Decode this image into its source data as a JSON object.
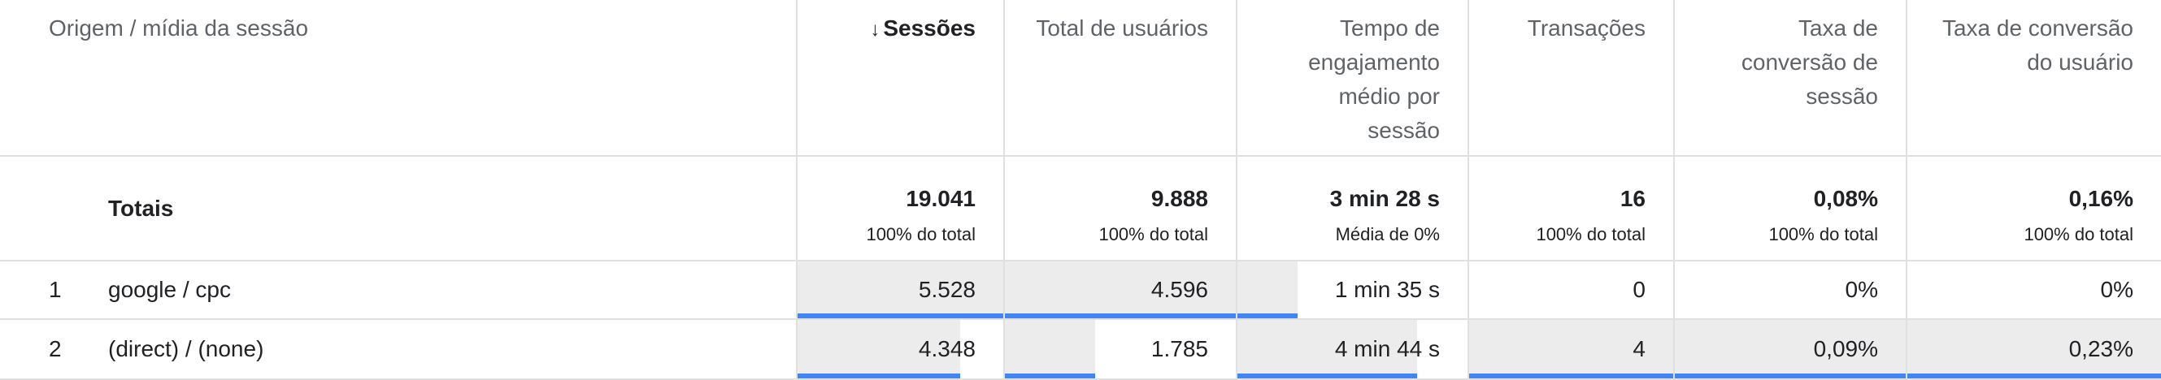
{
  "header": {
    "dimension": "Origem / mídia da sessão",
    "columns": [
      {
        "label": "Sessões",
        "sorted": true,
        "lines": [
          "Sessões"
        ]
      },
      {
        "label": "Total de usuários",
        "lines": [
          "Total de usuários"
        ]
      },
      {
        "label": "Tempo de engajamento médio por sessão",
        "lines": [
          "Tempo de",
          "engajamento",
          "médio por",
          "sessão"
        ]
      },
      {
        "label": "Transações",
        "lines": [
          "Transações"
        ]
      },
      {
        "label": "Taxa de conversão de sessão",
        "lines": [
          "Taxa de",
          "conversão de",
          "sessão"
        ]
      },
      {
        "label": "Taxa de conversão do usuário",
        "lines": [
          "Taxa de conversão",
          "do usuário"
        ]
      }
    ],
    "sort_icon": "arrow-down-icon"
  },
  "totals": {
    "label": "Totais",
    "values": [
      {
        "value": "19.041",
        "sub": "100% do total"
      },
      {
        "value": "9.888",
        "sub": "100% do total"
      },
      {
        "value": "3 min 28 s",
        "sub": "Média de 0%"
      },
      {
        "value": "16",
        "sub": "100% do total"
      },
      {
        "value": "0,08%",
        "sub": "100% do total"
      },
      {
        "value": "0,16%",
        "sub": "100% do total"
      }
    ]
  },
  "rows": [
    {
      "index": "1",
      "dimension": "google / cpc",
      "values": [
        "5.528",
        "4.596",
        "1 min 35 s",
        "0",
        "0%",
        "0%"
      ],
      "shares": [
        1.0,
        1.0,
        0.26,
        0,
        0,
        0
      ]
    },
    {
      "index": "2",
      "dimension": "(direct) / (none)",
      "values": [
        "4.348",
        "1.785",
        "4 min 44 s",
        "4",
        "0,09%",
        "0,23%"
      ],
      "shares": [
        0.79,
        0.39,
        0.78,
        1.0,
        1.0,
        1.0
      ]
    }
  ],
  "colors": {
    "bar": "#ececec",
    "line": "#4285f4",
    "border": "#e0e0e0"
  }
}
